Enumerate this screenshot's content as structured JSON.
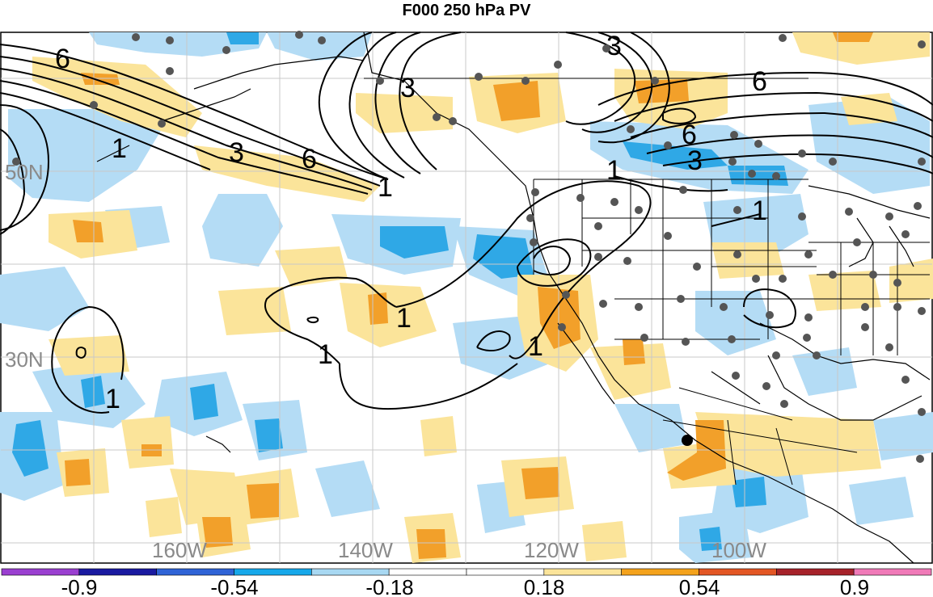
{
  "title": "F000 250 hPa PV",
  "lat_labels": [
    "50N",
    "30N"
  ],
  "lon_labels": [
    "160W",
    "140W",
    "120W",
    "100W"
  ],
  "contour_labels": [
    "6",
    "1",
    "3",
    "6",
    "1",
    "3",
    "6",
    "3",
    "6",
    "1",
    "1",
    "1",
    "1",
    "1",
    "3",
    "1"
  ],
  "colorbar": {
    "labels": [
      "-0.9",
      "-0.54",
      "-0.18",
      "0.18",
      "0.54",
      "0.9"
    ],
    "colors": [
      "#9a3fd0",
      "#1a1aa0",
      "#2f63d6",
      "#16a8ea",
      "#a8d8f2",
      "#ffffff",
      "#ffffff",
      "#fbe49a",
      "#f4a21c",
      "#e35624",
      "#a6222a",
      "#f07ab8"
    ]
  },
  "colors": {
    "light_blue": "#b4dcf5",
    "mid_blue": "#2fa8e6",
    "light_yellow": "#fbe49a",
    "orange": "#f2a02a",
    "station_dot": "#555555",
    "grid": "#c8c8c8"
  }
}
